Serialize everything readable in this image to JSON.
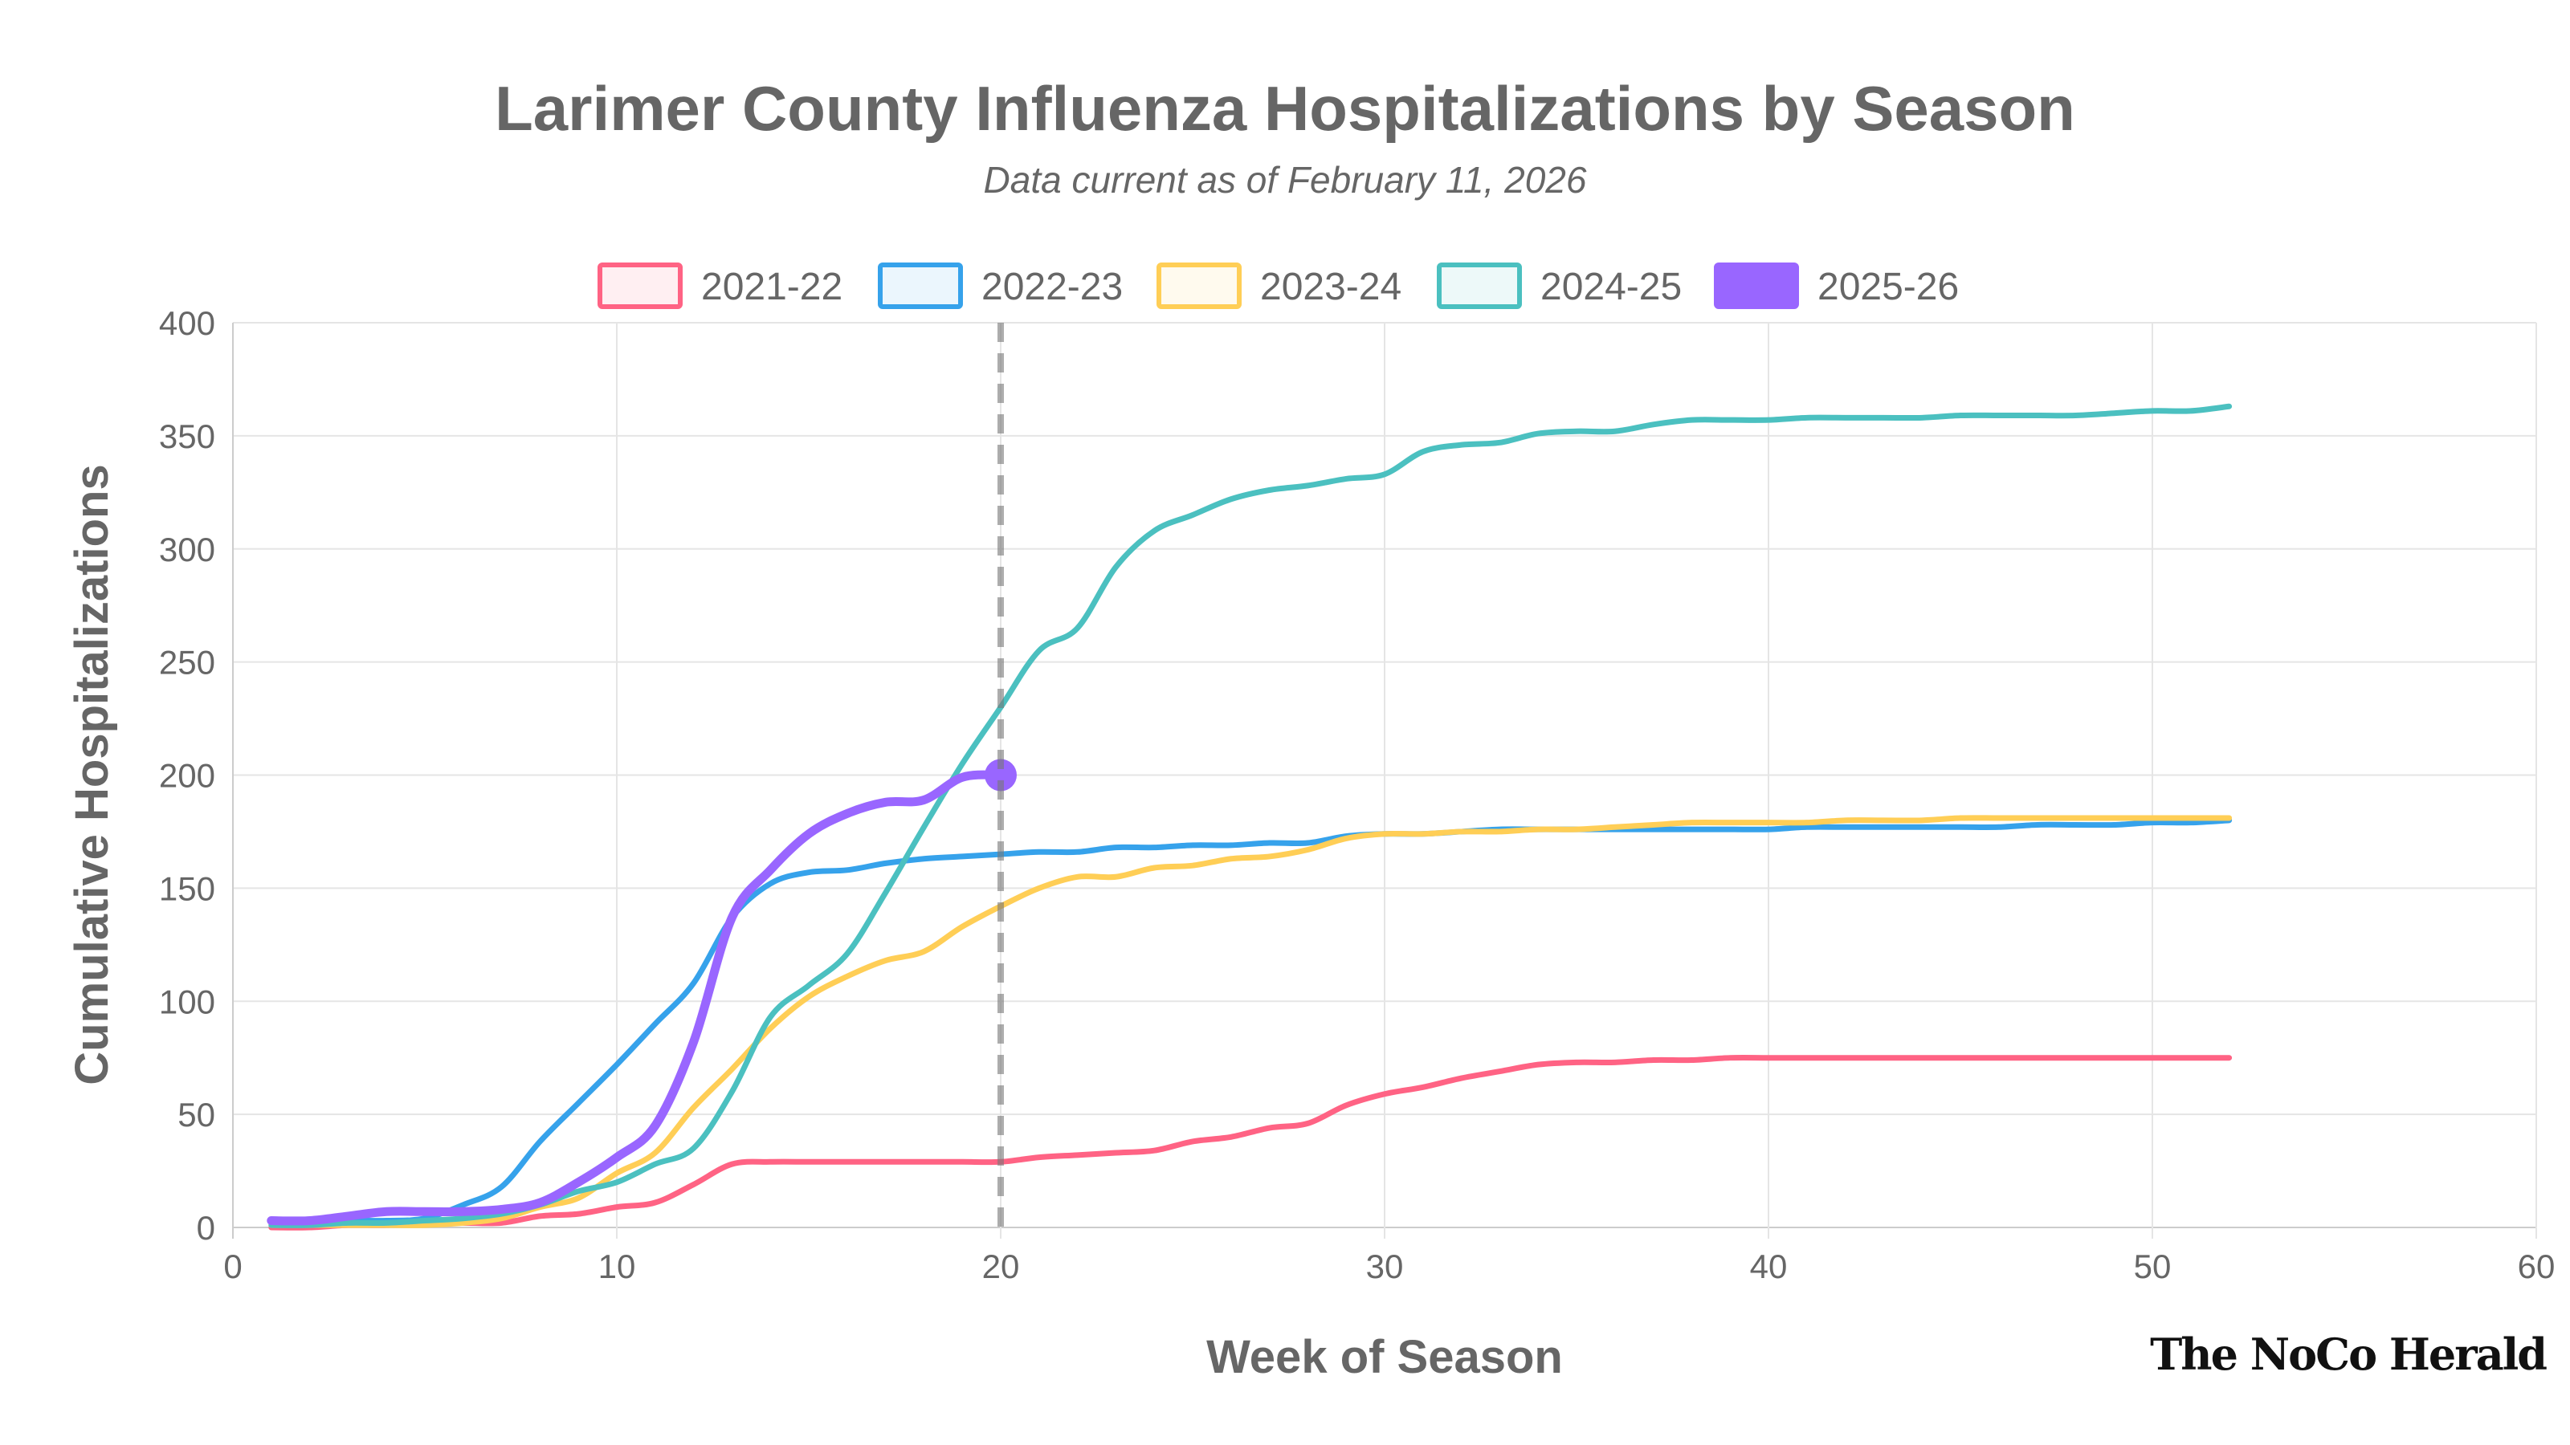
{
  "chart_data": {
    "type": "line",
    "title": "Larimer County Influenza Hospitalizations by Season",
    "subtitle": "Data current as of February 11, 2026",
    "xlabel": "Week of Season",
    "ylabel": "Cumulative Hospitalizations",
    "xlim": [
      0,
      60
    ],
    "ylim": [
      0,
      400
    ],
    "xticks": [
      0,
      10,
      20,
      30,
      40,
      50,
      60
    ],
    "yticks": [
      0,
      50,
      100,
      150,
      200,
      250,
      300,
      350,
      400
    ],
    "grid": true,
    "legend_position": "top",
    "reference_line": {
      "x": 20,
      "style": "dashed",
      "color": "#999999"
    },
    "series": [
      {
        "name": "2021-22",
        "color": "#ff6384",
        "x": [
          1,
          2,
          3,
          4,
          5,
          6,
          7,
          8,
          9,
          10,
          11,
          12,
          13,
          14,
          15,
          16,
          17,
          18,
          19,
          20,
          21,
          22,
          23,
          24,
          25,
          26,
          27,
          28,
          29,
          30,
          31,
          32,
          33,
          34,
          35,
          36,
          37,
          38,
          39,
          40,
          41,
          42,
          43,
          44,
          45,
          46,
          47,
          48,
          49,
          50,
          51,
          52
        ],
        "values": [
          0,
          0,
          1,
          1,
          2,
          2,
          2,
          5,
          6,
          9,
          11,
          19,
          28,
          29,
          29,
          29,
          29,
          29,
          29,
          29,
          31,
          32,
          33,
          34,
          38,
          40,
          44,
          46,
          54,
          59,
          62,
          66,
          69,
          72,
          73,
          73,
          74,
          74,
          75,
          75,
          75,
          75,
          75,
          75,
          75,
          75,
          75,
          75,
          75,
          75,
          75,
          75
        ]
      },
      {
        "name": "2022-23",
        "color": "#36a2eb",
        "x": [
          1,
          2,
          3,
          4,
          5,
          6,
          7,
          8,
          9,
          10,
          11,
          12,
          13,
          14,
          15,
          16,
          17,
          18,
          19,
          20,
          21,
          22,
          23,
          24,
          25,
          26,
          27,
          28,
          29,
          30,
          31,
          32,
          33,
          34,
          35,
          36,
          37,
          38,
          39,
          40,
          41,
          42,
          43,
          44,
          45,
          46,
          47,
          48,
          49,
          50,
          51,
          52
        ],
        "values": [
          2,
          2,
          3,
          3,
          4,
          10,
          18,
          38,
          55,
          72,
          90,
          108,
          137,
          152,
          157,
          158,
          161,
          163,
          164,
          165,
          166,
          166,
          168,
          168,
          169,
          169,
          170,
          170,
          173,
          174,
          174,
          175,
          176,
          176,
          176,
          176,
          176,
          176,
          176,
          176,
          177,
          177,
          177,
          177,
          177,
          177,
          178,
          178,
          178,
          179,
          179,
          180
        ]
      },
      {
        "name": "2023-24",
        "color": "#ffce56",
        "x": [
          1,
          2,
          3,
          4,
          5,
          6,
          7,
          8,
          9,
          10,
          11,
          12,
          13,
          14,
          15,
          16,
          17,
          18,
          19,
          20,
          21,
          22,
          23,
          24,
          25,
          26,
          27,
          28,
          29,
          30,
          31,
          32,
          33,
          34,
          35,
          36,
          37,
          38,
          39,
          40,
          41,
          42,
          43,
          44,
          45,
          46,
          47,
          48,
          49,
          50,
          51,
          52
        ],
        "values": [
          1,
          1,
          1,
          1,
          1,
          2,
          4,
          9,
          13,
          24,
          33,
          53,
          70,
          88,
          102,
          111,
          118,
          122,
          133,
          142,
          150,
          155,
          155,
          159,
          160,
          163,
          164,
          167,
          172,
          174,
          174,
          175,
          175,
          176,
          176,
          177,
          178,
          179,
          179,
          179,
          179,
          180,
          180,
          180,
          181,
          181,
          181,
          181,
          181,
          181,
          181,
          181
        ]
      },
      {
        "name": "2024-25",
        "color": "#4bc0c0",
        "x": [
          1,
          2,
          3,
          4,
          5,
          6,
          7,
          8,
          9,
          10,
          11,
          12,
          13,
          14,
          15,
          16,
          17,
          18,
          19,
          20,
          21,
          22,
          23,
          24,
          25,
          26,
          27,
          28,
          29,
          30,
          31,
          32,
          33,
          34,
          35,
          36,
          37,
          38,
          39,
          40,
          41,
          42,
          43,
          44,
          45,
          46,
          47,
          48,
          49,
          50,
          51,
          52
        ],
        "values": [
          1,
          1,
          2,
          2,
          3,
          4,
          6,
          10,
          16,
          20,
          28,
          35,
          60,
          93,
          107,
          121,
          148,
          177,
          205,
          230,
          255,
          265,
          292,
          308,
          315,
          322,
          326,
          328,
          331,
          333,
          343,
          346,
          347,
          351,
          352,
          352,
          355,
          357,
          357,
          357,
          358,
          358,
          358,
          358,
          359,
          359,
          359,
          359,
          360,
          361,
          361,
          363
        ]
      },
      {
        "name": "2025-26",
        "color": "#9966ff",
        "x": [
          1,
          2,
          3,
          4,
          5,
          6,
          7,
          8,
          9,
          10,
          11,
          12,
          13,
          14,
          15,
          16,
          17,
          18,
          19,
          20
        ],
        "values": [
          3,
          3,
          5,
          7,
          7,
          7,
          8,
          11,
          20,
          31,
          45,
          82,
          137,
          158,
          174,
          183,
          188,
          189,
          199,
          200
        ]
      }
    ]
  },
  "watermark": "The NoCo Herald"
}
